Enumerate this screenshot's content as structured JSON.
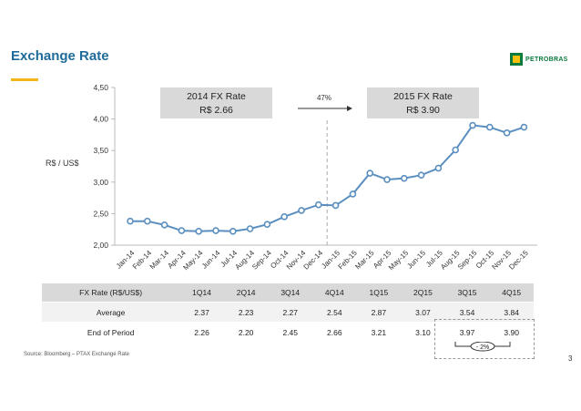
{
  "header": {
    "title": "Exchange Rate",
    "logo_text": "PETROBRAS"
  },
  "chart_data": {
    "type": "line",
    "ylabel": "R$ / US$",
    "ylim": [
      2.0,
      4.5
    ],
    "yticks": [
      "2,00",
      "2,50",
      "3,00",
      "3,50",
      "4,00",
      "4,50"
    ],
    "categories": [
      "Jan-14",
      "Feb-14",
      "Mar-14",
      "Apr-14",
      "May-14",
      "Jun-14",
      "Jul-14",
      "Aug-14",
      "Sep-14",
      "Oct-14",
      "Nov-14",
      "Dec-14",
      "Jan-15",
      "Feb-15",
      "Mar-15",
      "Apr-15",
      "May-15",
      "Jun-15",
      "Jul-15",
      "Aug-15",
      "Sep-15",
      "Oct-15",
      "Nov-15",
      "Dec-15"
    ],
    "series": [
      {
        "values": [
          2.38,
          2.38,
          2.32,
          2.23,
          2.22,
          2.23,
          2.22,
          2.26,
          2.33,
          2.45,
          2.55,
          2.64,
          2.63,
          2.81,
          3.14,
          3.04,
          3.06,
          3.11,
          3.22,
          3.51,
          3.9,
          3.87,
          3.78,
          3.87
        ],
        "color": "#5b8fbf"
      }
    ],
    "grid": false,
    "divider_after": "Dec-14",
    "annotations": {
      "box_2014_line1": "2014 FX Rate",
      "box_2014_line2": "R$ 2.66",
      "box_2015_line1": "2015 FX Rate",
      "box_2015_line2": "R$ 3.90",
      "change": "47%"
    }
  },
  "table": {
    "header": [
      "FX Rate (R$/US$)",
      "1Q14",
      "2Q14",
      "3Q14",
      "4Q14",
      "1Q15",
      "2Q15",
      "3Q15",
      "4Q15"
    ],
    "rows": [
      [
        "Average",
        "2.37",
        "2.23",
        "2.27",
        "2.54",
        "2.87",
        "3.07",
        "3.54",
        "3.84"
      ],
      [
        "End of Period",
        "2.26",
        "2.20",
        "2.45",
        "2.66",
        "3.21",
        "3.10",
        "3.97",
        "3.90"
      ]
    ]
  },
  "note": {
    "change": "- 2%"
  },
  "footer": {
    "source": "Source: Bloomberg – PTAX Exchange Rate",
    "page": "3"
  }
}
